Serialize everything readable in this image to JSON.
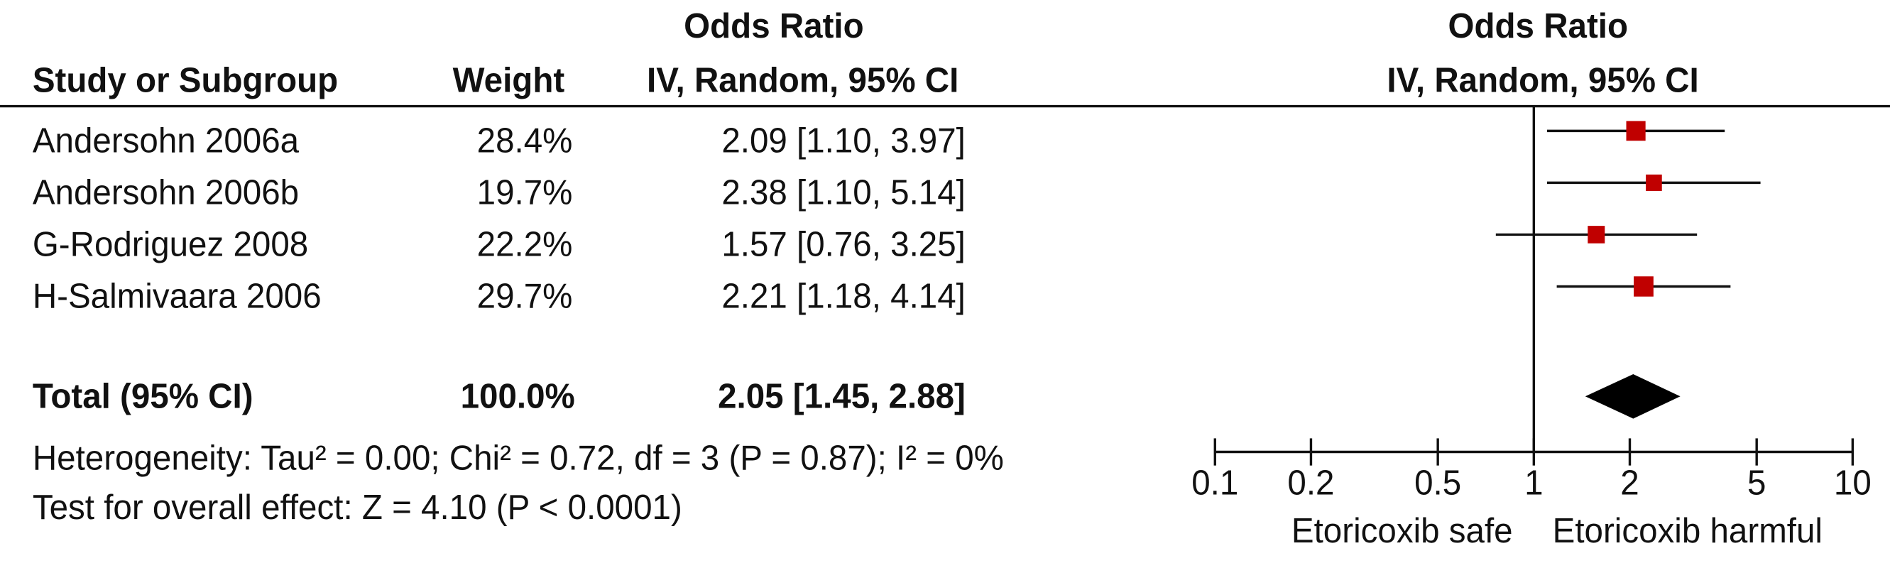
{
  "chart_data": {
    "type": "forest",
    "header_top": "Odds Ratio",
    "columns": [
      "Study or Subgroup",
      "Weight",
      "IV, Random, 95% CI"
    ],
    "plot_header": [
      "Odds Ratio",
      "IV, Random, 95% CI"
    ],
    "studies": [
      {
        "name": "Andersohn 2006a",
        "weight": 28.4,
        "weight_label": "28.4%",
        "or": 2.09,
        "lower": 1.1,
        "upper": 3.97,
        "ci_label": "2.09 [1.10, 3.97]"
      },
      {
        "name": "Andersohn 2006b",
        "weight": 19.7,
        "weight_label": "19.7%",
        "or": 2.38,
        "lower": 1.1,
        "upper": 5.14,
        "ci_label": "2.38 [1.10, 5.14]"
      },
      {
        "name": "G-Rodriguez 2008",
        "weight": 22.2,
        "weight_label": "22.2%",
        "or": 1.57,
        "lower": 0.76,
        "upper": 3.25,
        "ci_label": "1.57 [0.76, 3.25]"
      },
      {
        "name": "H-Salmivaara 2006",
        "weight": 29.7,
        "weight_label": "29.7%",
        "or": 2.21,
        "lower": 1.18,
        "upper": 4.14,
        "ci_label": "2.21 [1.18, 4.14]"
      }
    ],
    "total": {
      "name": "Total (95% CI)",
      "weight": 100.0,
      "weight_label": "100.0%",
      "or": 2.05,
      "lower": 1.45,
      "upper": 2.88,
      "ci_label": "2.05 [1.45, 2.88]"
    },
    "heterogeneity": "Heterogeneity: Tau² = 0.00; Chi² = 0.72, df = 3 (P = 0.87); I² = 0%",
    "overall_effect": "Test for overall effect: Z = 4.10 (P < 0.0001)",
    "log_x": true,
    "xlim": [
      0.1,
      10
    ],
    "xticks": [
      0.1,
      0.2,
      0.5,
      1,
      2,
      5,
      10
    ],
    "x_labels": [
      "Etoricoxib safe",
      "Etoricoxib harmful"
    ],
    "marker_color": "#c00000",
    "diamond_color": "#000000"
  }
}
